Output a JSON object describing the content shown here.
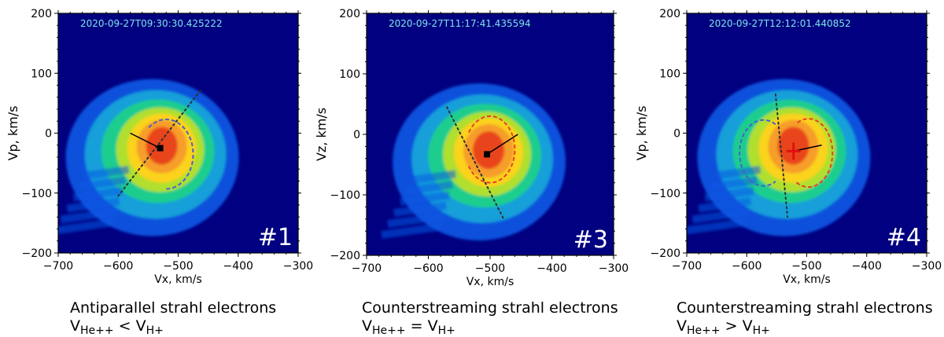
{
  "colors": {
    "background": "#000080",
    "vdf_core": "#e8401a",
    "vdf_mid": "#ffd21c",
    "vdf_outer": "#1fd08a",
    "vdf_edge": "#0a5ae6",
    "blue_contour": "#4a5fd0",
    "red_contour": "#e8402a",
    "timestamp_text": "#7fe3e3",
    "marker_red": "#e01010"
  },
  "chart_data": [
    {
      "type": "heatmap",
      "panel_label": "#1",
      "timestamp": "2020-09-27T09:30:30.425222",
      "xlabel": "Vx, km/s",
      "ylabel": "Vp, km/s",
      "xlim": [
        -700,
        -300
      ],
      "ylim": [
        -200,
        200
      ],
      "xticks": [
        -700,
        -600,
        -500,
        -400,
        -300
      ],
      "yticks": [
        -200,
        -100,
        0,
        100,
        200
      ],
      "distribution_center": [
        -530,
        -25
      ],
      "h_plus_velocity": [
        -530,
        -25
      ],
      "he_plus_plus_velocity": [
        -580,
        0
      ],
      "marker": "square",
      "contours": [
        {
          "color": "blue",
          "center": [
            -520,
            -35
          ],
          "radii": [
            45,
            58
          ],
          "angle_range": [
            -90,
            130
          ]
        }
      ],
      "magnetic_field_line": {
        "from": [
          -600,
          -105
        ],
        "to": [
          -460,
          75
        ]
      },
      "caption_line1": "Antiparallel strahl electrons",
      "caption_line2": {
        "left": "V",
        "sub1": "He++",
        "op": " < V",
        "sub2": "H+"
      }
    },
    {
      "type": "heatmap",
      "panel_label": "#3",
      "timestamp": "2020-09-27T11:17:41.435594",
      "xlabel": "Vx, km/s",
      "ylabel": "Vz, km/s",
      "xlim": [
        -700,
        -300
      ],
      "ylim": [
        -200,
        200
      ],
      "xticks": [
        -700,
        -600,
        -500,
        -400,
        -300
      ],
      "yticks": [
        -200,
        -100,
        0,
        100,
        200
      ],
      "distribution_center": [
        -505,
        -30
      ],
      "h_plus_velocity": [
        -505,
        -33
      ],
      "he_plus_plus_velocity": [
        -455,
        0
      ],
      "marker": "square",
      "contours": [
        {
          "color": "red",
          "center": [
            -500,
            -25
          ],
          "radii": [
            40,
            55
          ],
          "angle_range": [
            -150,
            150
          ]
        }
      ],
      "magnetic_field_line": {
        "from": [
          -570,
          45
        ],
        "to": [
          -478,
          -140
        ]
      },
      "caption_line1": "Counterstreaming strahl electrons",
      "caption_line2": {
        "left": "V",
        "sub1": "He++",
        "op": " = V",
        "sub2": "H+"
      }
    },
    {
      "type": "heatmap",
      "panel_label": "#4",
      "timestamp": "2020-09-27T12:12:01.440852",
      "xlabel": "Vx, km/s",
      "ylabel": "Vp, km/s",
      "xlim": [
        -700,
        -300
      ],
      "ylim": [
        -200,
        200
      ],
      "xticks": [
        -700,
        -600,
        -500,
        -400,
        -300
      ],
      "yticks": [
        -200,
        -100,
        0,
        100,
        200
      ],
      "distribution_center": [
        -525,
        -25
      ],
      "h_plus_velocity": [
        -522,
        -30
      ],
      "he_plus_plus_velocity": [
        -475,
        -20
      ],
      "marker": "cross",
      "contours": [
        {
          "color": "blue",
          "center": [
            -572,
            -33
          ],
          "radii": [
            40,
            55
          ],
          "angle_range": [
            60,
            300
          ]
        },
        {
          "color": "red",
          "center": [
            -497,
            -33
          ],
          "radii": [
            40,
            57
          ],
          "angle_range": [
            -120,
            120
          ]
        }
      ],
      "magnetic_field_line": {
        "from": [
          -552,
          65
        ],
        "to": [
          -532,
          -140
        ]
      },
      "caption_line1": "Counterstreaming strahl electrons",
      "caption_line2": {
        "left": "V",
        "sub1": "He++",
        "op": " > V",
        "sub2": "H+"
      }
    }
  ]
}
